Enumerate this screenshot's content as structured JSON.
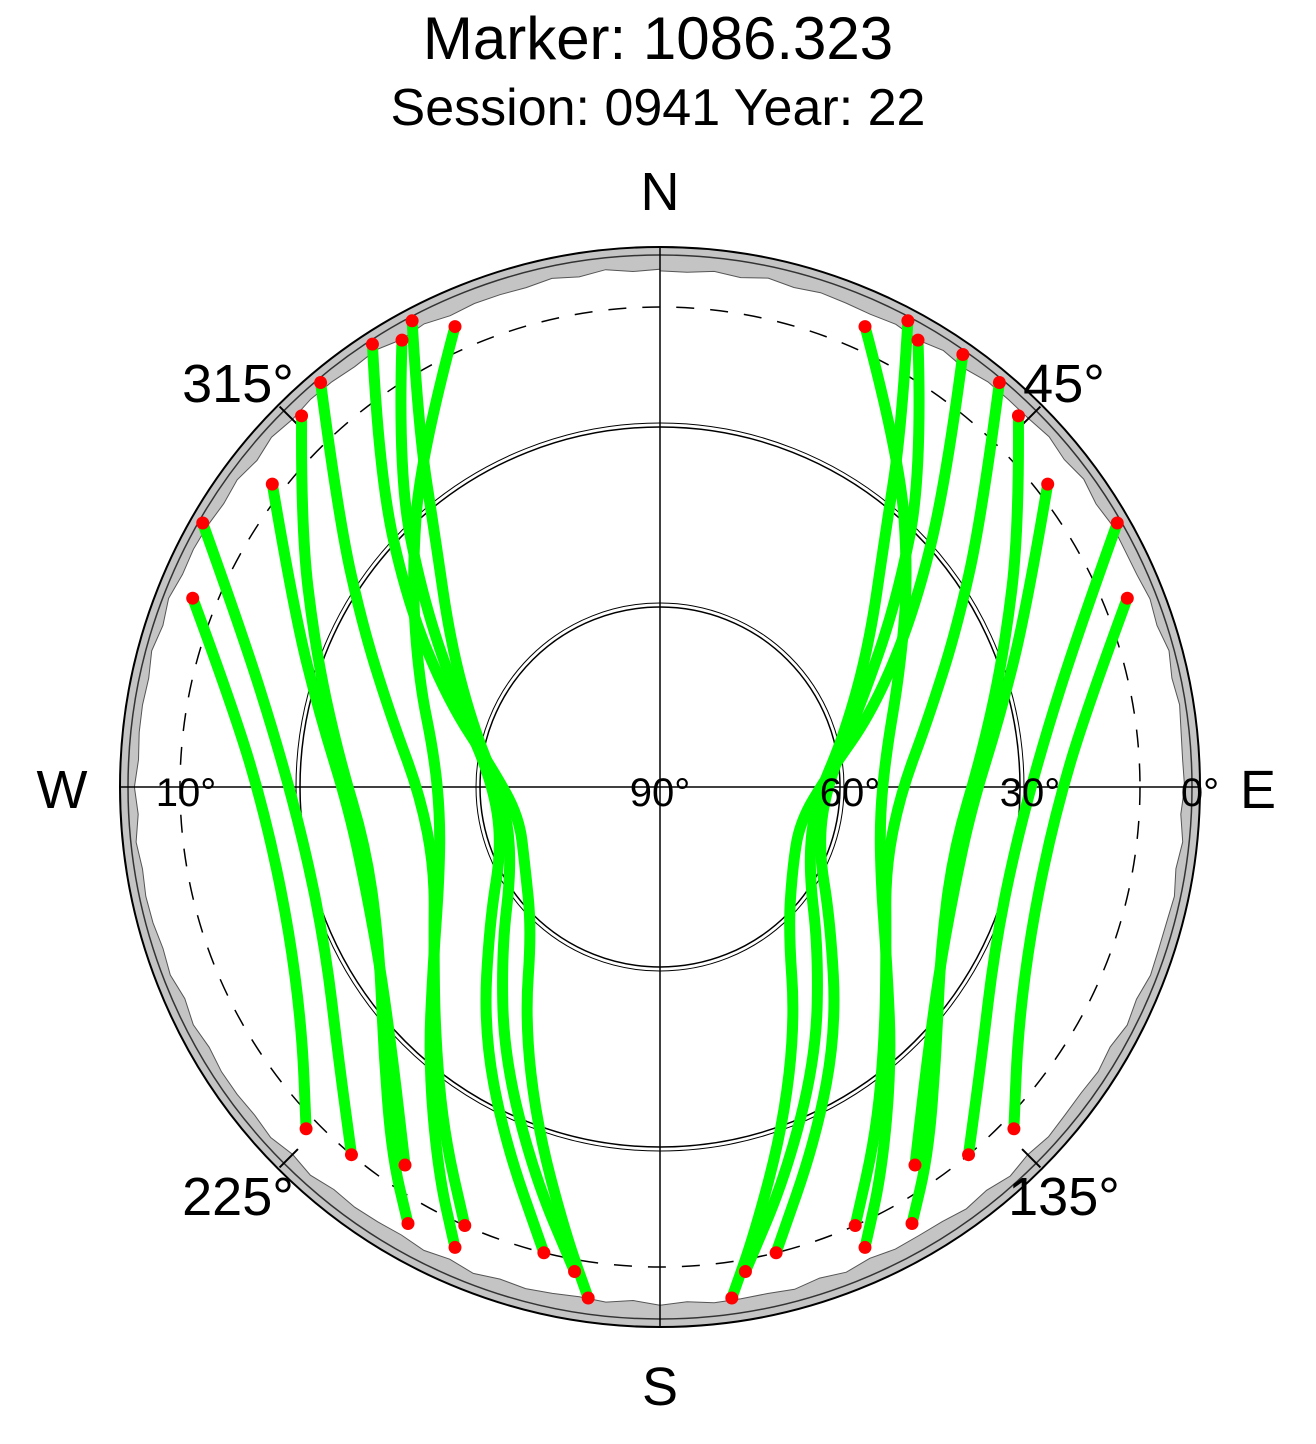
{
  "chart_data": {
    "type": "scatter",
    "projection": "polar-skyplot",
    "title": "Marker: 1086.323",
    "subtitle": "Session: 0941 Year: 22",
    "compass": {
      "north": "N",
      "east": "E",
      "south": "S",
      "west": "W"
    },
    "azimuth_labels": [
      {
        "az": 45,
        "text": "45°"
      },
      {
        "az": 135,
        "text": "135°"
      },
      {
        "az": 225,
        "text": "225°"
      },
      {
        "az": 315,
        "text": "315°"
      }
    ],
    "elevation_labels": [
      {
        "el": 0,
        "text": "0°"
      },
      {
        "el": 30,
        "text": "30°"
      },
      {
        "el": 60,
        "text": "60°"
      },
      {
        "el": 90,
        "text": "90°"
      },
      {
        "el": 10,
        "text": "10°"
      }
    ],
    "elevation_circles": [
      30,
      60
    ],
    "cutoff_elevation": 10,
    "colors": {
      "track": "#00ff00",
      "endpoint": "#ff0000",
      "horizon_mask": "#c4c4c4"
    },
    "series": [
      {
        "name": "",
        "color": "#00ff00",
        "role": "satellite tracks",
        "tracks": [
          [
            [
              35,
              2
            ],
            [
              43,
              20
            ],
            [
              55,
              38
            ],
            [
              70,
              52
            ],
            [
              86,
              62
            ],
            [
              104,
              66
            ],
            [
              122,
              64
            ],
            [
              138,
              58
            ],
            [
              150,
              45
            ],
            [
              160,
              30
            ],
            [
              168,
              14
            ],
            [
              172,
              4
            ]
          ],
          [
            [
              24,
              6
            ],
            [
              36,
              22
            ],
            [
              50,
              36
            ],
            [
              65,
              46
            ],
            [
              82,
              52
            ],
            [
              98,
              53
            ],
            [
              113,
              50
            ],
            [
              128,
              42
            ],
            [
              140,
              30
            ],
            [
              150,
              16
            ],
            [
              156,
              6
            ]
          ],
          [
            [
              30,
              4
            ],
            [
              40,
              22
            ],
            [
              52,
              40
            ],
            [
              68,
              54
            ],
            [
              88,
              62
            ],
            [
              110,
              62
            ],
            [
              128,
              54
            ],
            [
              144,
              40
            ],
            [
              156,
              26
            ],
            [
              166,
              10
            ]
          ],
          [
            [
              40,
              2
            ],
            [
              50,
              20
            ],
            [
              62,
              34
            ],
            [
              76,
              44
            ],
            [
              92,
              50
            ],
            [
              110,
              50
            ],
            [
              125,
              44
            ],
            [
              138,
              34
            ],
            [
              148,
              22
            ],
            [
              156,
              10
            ]
          ],
          [
            [
              52,
              8
            ],
            [
              64,
              22
            ],
            [
              78,
              32
            ],
            [
              94,
              38
            ],
            [
              110,
              38
            ],
            [
              124,
              34
            ],
            [
              136,
              26
            ],
            [
              146,
              14
            ]
          ],
          [
            [
              60,
              2
            ],
            [
              70,
              16
            ],
            [
              84,
              26
            ],
            [
              100,
              30
            ],
            [
              116,
              28
            ],
            [
              130,
              20
            ],
            [
              140,
              10
            ]
          ],
          [
            [
              28,
              2
            ],
            [
              34,
              18
            ],
            [
              42,
              34
            ],
            [
              56,
              48
            ],
            [
              74,
              58
            ],
            [
              96,
              64
            ],
            [
              118,
              62
            ],
            [
              136,
              52
            ],
            [
              150,
              38
            ],
            [
              162,
              22
            ],
            [
              170,
              8
            ]
          ],
          [
            [
              68,
              6
            ],
            [
              80,
              18
            ],
            [
              94,
              24
            ],
            [
              110,
              24
            ],
            [
              124,
              18
            ],
            [
              134,
              8
            ]
          ],
          [
            [
              44,
              4
            ],
            [
              54,
              16
            ],
            [
              68,
              28
            ],
            [
              84,
              36
            ],
            [
              102,
              40
            ],
            [
              120,
              36
            ],
            [
              134,
              26
            ],
            [
              144,
              14
            ],
            [
              150,
              6
            ]
          ],
          [
            [
              327,
              2
            ],
            [
              318,
              20
            ],
            [
              306,
              38
            ],
            [
              292,
              52
            ],
            [
              276,
              62
            ],
            [
              258,
              66
            ],
            [
              240,
              64
            ],
            [
              222,
              58
            ],
            [
              210,
              45
            ],
            [
              200,
              30
            ],
            [
              192,
              14
            ],
            [
              188,
              4
            ]
          ],
          [
            [
              336,
              6
            ],
            [
              324,
              22
            ],
            [
              310,
              36
            ],
            [
              294,
              46
            ],
            [
              278,
              52
            ],
            [
              262,
              53
            ],
            [
              247,
              50
            ],
            [
              232,
              42
            ],
            [
              220,
              30
            ],
            [
              210,
              16
            ],
            [
              204,
              6
            ]
          ],
          [
            [
              330,
              4
            ],
            [
              320,
              22
            ],
            [
              308,
              40
            ],
            [
              292,
              54
            ],
            [
              272,
              62
            ],
            [
              250,
              62
            ],
            [
              232,
              54
            ],
            [
              216,
              40
            ],
            [
              204,
              26
            ],
            [
              194,
              10
            ]
          ],
          [
            [
              320,
              2
            ],
            [
              310,
              20
            ],
            [
              298,
              34
            ],
            [
              284,
              44
            ],
            [
              268,
              50
            ],
            [
              250,
              50
            ],
            [
              235,
              44
            ],
            [
              222,
              34
            ],
            [
              212,
              22
            ],
            [
              204,
              10
            ]
          ],
          [
            [
              308,
              8
            ],
            [
              296,
              22
            ],
            [
              282,
              32
            ],
            [
              266,
              38
            ],
            [
              250,
              38
            ],
            [
              236,
              34
            ],
            [
              224,
              26
            ],
            [
              214,
              14
            ]
          ],
          [
            [
              300,
              2
            ],
            [
              290,
              16
            ],
            [
              276,
              26
            ],
            [
              260,
              30
            ],
            [
              244,
              28
            ],
            [
              230,
              20
            ],
            [
              220,
              10
            ]
          ],
          [
            [
              332,
              2
            ],
            [
              326,
              18
            ],
            [
              318,
              34
            ],
            [
              304,
              48
            ],
            [
              286,
              58
            ],
            [
              264,
              64
            ],
            [
              242,
              62
            ],
            [
              224,
              52
            ],
            [
              210,
              38
            ],
            [
              198,
              22
            ],
            [
              190,
              8
            ]
          ],
          [
            [
              292,
              6
            ],
            [
              280,
              18
            ],
            [
              266,
              24
            ],
            [
              250,
              24
            ],
            [
              236,
              18
            ],
            [
              226,
              8
            ]
          ],
          [
            [
              316,
              4
            ],
            [
              306,
              16
            ],
            [
              292,
              28
            ],
            [
              276,
              36
            ],
            [
              258,
              40
            ],
            [
              240,
              36
            ],
            [
              226,
              26
            ],
            [
              216,
              14
            ],
            [
              210,
              6
            ]
          ]
        ]
      },
      {
        "name": "",
        "color": "#ff0000",
        "role": "track endpoints"
      }
    ],
    "grid": true,
    "legend": "none"
  }
}
